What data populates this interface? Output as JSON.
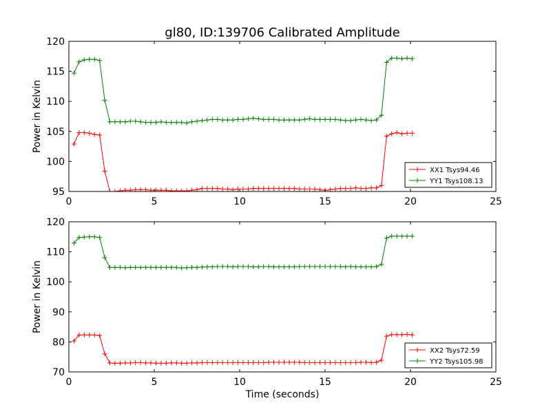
{
  "chart_data": [
    {
      "type": "line",
      "title": "gl80, ID:139706 Calibrated Amplitude",
      "xlabel": "",
      "ylabel": "Power in Kelvin",
      "xlim": [
        0,
        25
      ],
      "ylim": [
        95,
        120
      ],
      "xticks": [
        "0",
        "5",
        "10",
        "15",
        "20",
        "25"
      ],
      "yticks": [
        "95",
        "100",
        "105",
        "110",
        "115",
        "120"
      ],
      "legend_position": "lower-right",
      "grid": false,
      "x": [
        0.3,
        0.6,
        0.9,
        1.2,
        1.5,
        1.8,
        2.1,
        2.4,
        2.7,
        3.0,
        3.3,
        3.6,
        3.9,
        4.2,
        4.5,
        4.8,
        5.1,
        5.4,
        5.7,
        6.0,
        6.3,
        6.6,
        6.9,
        7.2,
        7.5,
        7.8,
        8.1,
        8.4,
        8.7,
        9.0,
        9.3,
        9.6,
        9.9,
        10.2,
        10.5,
        10.8,
        11.1,
        11.4,
        11.7,
        12.0,
        12.3,
        12.6,
        12.9,
        13.2,
        13.5,
        13.8,
        14.1,
        14.4,
        14.7,
        15.0,
        15.3,
        15.6,
        15.9,
        16.2,
        16.5,
        16.8,
        17.1,
        17.4,
        17.7,
        18.0,
        18.3,
        18.6,
        18.9,
        19.2,
        19.5,
        19.8,
        20.1
      ],
      "series": [
        {
          "name": "XX1 Tsys94.46",
          "color": "#ff0000",
          "values": [
            102.9,
            104.8,
            104.8,
            104.7,
            104.5,
            104.4,
            98.4,
            95.0,
            95.0,
            95.1,
            95.2,
            95.2,
            95.3,
            95.3,
            95.3,
            95.2,
            95.2,
            95.2,
            95.2,
            95.1,
            95.1,
            95.1,
            95.1,
            95.2,
            95.3,
            95.5,
            95.5,
            95.5,
            95.5,
            95.4,
            95.4,
            95.3,
            95.4,
            95.4,
            95.4,
            95.5,
            95.5,
            95.5,
            95.5,
            95.5,
            95.5,
            95.5,
            95.5,
            95.5,
            95.4,
            95.4,
            95.4,
            95.4,
            95.3,
            95.2,
            95.3,
            95.4,
            95.5,
            95.5,
            95.5,
            95.6,
            95.5,
            95.5,
            95.6,
            95.6,
            96.0,
            104.2,
            104.6,
            104.8,
            104.6,
            104.7,
            104.7
          ]
        },
        {
          "name": "YY1 Tsys108.13",
          "color": "#008000",
          "values": [
            114.7,
            116.6,
            116.9,
            117.0,
            117.0,
            116.8,
            110.2,
            106.6,
            106.6,
            106.6,
            106.6,
            106.7,
            106.7,
            106.6,
            106.5,
            106.5,
            106.5,
            106.6,
            106.5,
            106.5,
            106.5,
            106.5,
            106.4,
            106.6,
            106.7,
            106.8,
            106.9,
            107.0,
            107.0,
            106.9,
            106.9,
            106.9,
            107.0,
            107.0,
            107.1,
            107.2,
            107.1,
            107.0,
            107.0,
            107.0,
            106.9,
            106.9,
            106.9,
            106.9,
            106.9,
            107.0,
            107.1,
            107.0,
            107.0,
            107.0,
            107.0,
            107.0,
            106.9,
            106.8,
            106.8,
            106.9,
            107.0,
            106.9,
            106.8,
            106.9,
            107.7,
            116.5,
            117.2,
            117.2,
            117.1,
            117.2,
            117.1
          ]
        }
      ]
    },
    {
      "type": "line",
      "title": "",
      "xlabel": "Time (seconds)",
      "ylabel": "Power in Kelvin",
      "xlim": [
        0,
        25
      ],
      "ylim": [
        70,
        120
      ],
      "xticks": [
        "0",
        "5",
        "10",
        "15",
        "20",
        "25"
      ],
      "yticks": [
        "70",
        "80",
        "90",
        "100",
        "110",
        "120"
      ],
      "legend_position": "lower-right",
      "grid": false,
      "x": [
        0.3,
        0.6,
        0.9,
        1.2,
        1.5,
        1.8,
        2.1,
        2.4,
        2.7,
        3.0,
        3.3,
        3.6,
        3.9,
        4.2,
        4.5,
        4.8,
        5.1,
        5.4,
        5.7,
        6.0,
        6.3,
        6.6,
        6.9,
        7.2,
        7.5,
        7.8,
        8.1,
        8.4,
        8.7,
        9.0,
        9.3,
        9.6,
        9.9,
        10.2,
        10.5,
        10.8,
        11.1,
        11.4,
        11.7,
        12.0,
        12.3,
        12.6,
        12.9,
        13.2,
        13.5,
        13.8,
        14.1,
        14.4,
        14.7,
        15.0,
        15.3,
        15.6,
        15.9,
        16.2,
        16.5,
        16.8,
        17.1,
        17.4,
        17.7,
        18.0,
        18.3,
        18.6,
        18.9,
        19.2,
        19.5,
        19.8,
        20.1
      ],
      "series": [
        {
          "name": "XX2 Tsys72.59",
          "color": "#ff0000",
          "values": [
            80.3,
            82.3,
            82.3,
            82.3,
            82.3,
            82.1,
            76.0,
            73.0,
            72.9,
            72.9,
            73.0,
            73.0,
            73.1,
            73.1,
            73.0,
            73.0,
            72.9,
            72.9,
            72.9,
            73.0,
            73.0,
            72.9,
            72.9,
            73.0,
            73.0,
            73.1,
            73.1,
            73.1,
            73.1,
            73.1,
            73.1,
            73.1,
            73.1,
            73.1,
            73.1,
            73.1,
            73.1,
            73.1,
            73.2,
            73.2,
            73.2,
            73.2,
            73.2,
            73.2,
            73.2,
            73.1,
            73.1,
            73.1,
            73.1,
            73.1,
            73.1,
            73.1,
            73.1,
            73.1,
            73.1,
            73.1,
            73.2,
            73.2,
            73.1,
            73.2,
            73.9,
            81.9,
            82.4,
            82.4,
            82.4,
            82.5,
            82.3
          ]
        },
        {
          "name": "YY2 Tsys105.98",
          "color": "#008000",
          "values": [
            112.9,
            114.8,
            114.9,
            115.0,
            115.0,
            114.8,
            108.1,
            104.8,
            104.8,
            104.8,
            104.7,
            104.8,
            104.8,
            104.8,
            104.8,
            104.8,
            104.8,
            104.8,
            104.8,
            104.8,
            104.8,
            104.6,
            104.7,
            104.8,
            104.8,
            104.9,
            105.0,
            105.0,
            105.1,
            105.1,
            105.1,
            105.0,
            105.1,
            105.1,
            105.1,
            105.0,
            105.0,
            105.1,
            105.1,
            105.0,
            105.0,
            105.0,
            105.0,
            105.0,
            105.1,
            105.1,
            105.1,
            105.1,
            105.1,
            105.1,
            105.1,
            105.1,
            105.1,
            105.0,
            105.1,
            105.0,
            105.0,
            105.0,
            105.0,
            105.1,
            105.8,
            114.6,
            115.2,
            115.2,
            115.2,
            115.2,
            115.2
          ]
        }
      ]
    }
  ]
}
